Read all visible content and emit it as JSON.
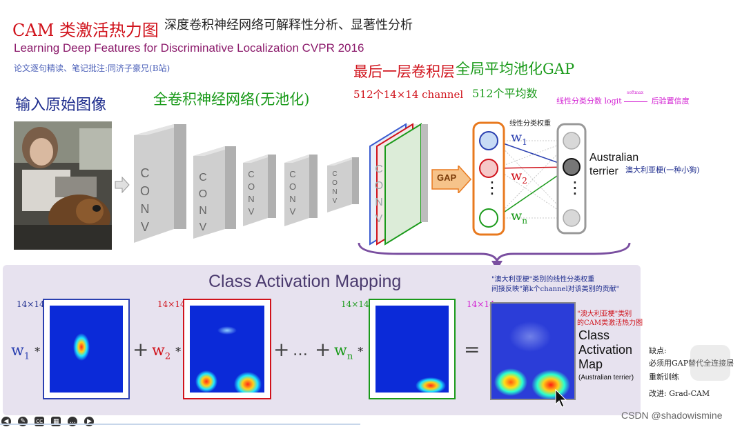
{
  "header": {
    "title_red": "CAM 类激活热力图",
    "title_black": "深度卷积神经网络可解释性分析、显著性分析",
    "paper_title": "Learning Deep Features for Discriminative Localization  CVPR 2016",
    "note": "论文逐句精读、笔记批注:同济子豪兄(B站)"
  },
  "labels": {
    "input_image": "输入原始图像",
    "fully_conv": "全卷积神经网络(无池化)",
    "last_conv": "最后一层卷积层",
    "last_conv_sub": "512个14×14 channel",
    "gap": "全局平均池化GAP",
    "gap_sub": "512个平均数",
    "logit_note": "线性分类分数 logit",
    "softmax": "softmax",
    "posterior": "后验置信度",
    "linear_weight": "线性分类权重",
    "australian": "Australian",
    "terrier": "terrier",
    "terrier_cn": "澳大利亚梗(一种小狗)",
    "gap_block": "GAP"
  },
  "conv_blocks": [
    "C",
    "O",
    "N",
    "V"
  ],
  "weights": {
    "w1": "w",
    "w1_sub": "1",
    "w2": "w",
    "w2_sub": "2",
    "wn": "w",
    "wn_sub": "n",
    "dots": "⋮"
  },
  "cam": {
    "title": "Class Activation Mapping",
    "size_label": "14×14",
    "plus": "+",
    "ellipsis": "…",
    "equals": "=",
    "star": "*",
    "weight_note_1": "\"澳大利亚梗\"类别的线性分类权重",
    "weight_note_2": "间接反映\"第k个channel对该类别的贡献\"",
    "heatmap_note_1": "\"澳大利亚梗\"类别",
    "heatmap_note_2": "的CAM类激活热力图",
    "map_title_1": "Class",
    "map_title_2": "Activation",
    "map_title_3": "Map",
    "map_sub": "(Australian terrier)"
  },
  "side_notes": {
    "line1": "缺点:",
    "line2": "必须用GAP替代全连接层",
    "line3": "重新训练",
    "line4": "改进: Grad-CAM"
  },
  "watermark": "CSDN @shadowismine",
  "colors": {
    "red": "#d0121b",
    "green": "#1a9a1a",
    "blue": "#2a3fb0",
    "orange": "#e8791e",
    "purple": "#7a4fa0"
  },
  "toolbar_icons": [
    "back-icon",
    "pen-icon",
    "cc-icon",
    "grid-icon",
    "more-icon",
    "forward-icon"
  ]
}
